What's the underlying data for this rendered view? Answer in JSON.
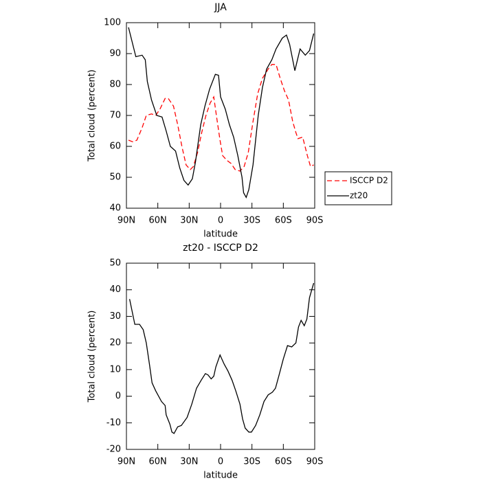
{
  "chart_data": [
    {
      "type": "line",
      "title": "JJA",
      "x_label": "latitude",
      "y_label": "Total cloud (percent)",
      "xlim": [
        90,
        -90
      ],
      "xticks": [
        {
          "value": 90,
          "label": "90N"
        },
        {
          "value": 60,
          "label": "60N"
        },
        {
          "value": 30,
          "label": "30N"
        },
        0,
        {
          "value": -30,
          "label": "30S"
        },
        {
          "value": -60,
          "label": "60S"
        },
        {
          "value": -90,
          "label": "90S"
        }
      ],
      "ylim": [
        40,
        100
      ],
      "yticks": [
        40,
        50,
        60,
        70,
        80,
        90,
        100
      ],
      "legend": "outside-right",
      "series": [
        {
          "name": "ISCCP D2",
          "color": "#ff0000",
          "dash": true,
          "x": [
            88,
            84,
            80,
            75,
            71,
            66,
            62,
            58,
            53,
            50,
            45,
            41,
            37,
            33,
            29,
            26,
            22,
            18,
            14,
            10,
            6.5,
            4,
            0.5,
            -2,
            -6,
            -10,
            -14,
            -18.5,
            -22.5,
            -26.5,
            -31,
            -35.5,
            -40,
            -45.5,
            -49,
            -53,
            -57,
            -61,
            -65,
            -69,
            -72,
            -74,
            -78.5,
            -83,
            -86,
            -89
          ],
          "values": [
            62,
            61.5,
            62,
            66,
            70,
            70.5,
            70,
            72,
            75.5,
            75.5,
            73,
            67,
            60,
            54,
            52.5,
            53.5,
            58,
            64.5,
            70,
            74,
            76,
            70,
            62,
            57,
            55.5,
            54.5,
            52.5,
            52,
            53.5,
            58,
            68,
            77,
            82,
            85,
            86.5,
            86.5,
            82,
            78,
            75,
            68,
            64.5,
            62.5,
            63,
            57,
            53.5,
            54
          ]
        },
        {
          "name": "zt20",
          "color": "#000000",
          "dash": false,
          "x": [
            88,
            81,
            75,
            72,
            70,
            66,
            61,
            56,
            52,
            48,
            43,
            39,
            35,
            31,
            27,
            24,
            19,
            15,
            10.5,
            5,
            2,
            0,
            -4.5,
            -8.5,
            -12.5,
            -16.5,
            -20.5,
            -22,
            -24.5,
            -27,
            -31,
            -36,
            -40,
            -44,
            -49,
            -53,
            -59,
            -63,
            -66,
            -71,
            -76,
            -81,
            -85,
            -89
          ],
          "values": [
            98.5,
            89,
            89.5,
            88,
            81,
            75,
            70,
            69.5,
            65,
            60,
            58.5,
            53,
            49,
            47.5,
            49.5,
            55,
            67,
            73,
            78.5,
            83.3,
            83,
            76,
            72,
            67,
            63,
            57,
            50,
            45,
            43.5,
            46,
            54,
            70,
            79,
            85,
            88,
            91.5,
            95,
            96,
            93,
            84.5,
            91.5,
            89.5,
            91,
            96.5
          ]
        }
      ]
    },
    {
      "type": "line",
      "title": "zt20 - ISCCP D2",
      "x_label": "latitude",
      "y_label": "Total cloud (percent)",
      "xlim": [
        90,
        -90
      ],
      "xticks": [
        {
          "value": 90,
          "label": "90N"
        },
        {
          "value": 60,
          "label": "60N"
        },
        {
          "value": 30,
          "label": "30N"
        },
        0,
        {
          "value": -30,
          "label": "30S"
        },
        {
          "value": -60,
          "label": "60S"
        },
        {
          "value": -90,
          "label": "90S"
        }
      ],
      "ylim": [
        -20,
        50
      ],
      "yticks": [
        -20,
        -10,
        0,
        10,
        20,
        30,
        40,
        50
      ],
      "series": [
        {
          "color": "#000000",
          "dash": false,
          "x": [
            87,
            82,
            77.5,
            74,
            71,
            68,
            65.5,
            62,
            56.5,
            53,
            52,
            48.5,
            46.5,
            44.5,
            41,
            37.5,
            32,
            27.5,
            23,
            18.5,
            14.5,
            12,
            9,
            6.5,
            4.5,
            0.5,
            -3.5,
            -7,
            -11,
            -14.5,
            -18.5,
            -21,
            -23.5,
            -27,
            -29.5,
            -33.5,
            -37.5,
            -41.5,
            -45.5,
            -49.5,
            -52.5,
            -56,
            -60,
            -64,
            -68,
            -72,
            -74.5,
            -77,
            -80,
            -82.5,
            -85,
            -89
          ],
          "values": [
            36.5,
            27,
            27,
            25,
            20,
            12,
            5,
            2,
            -2,
            -3.5,
            -7,
            -10.5,
            -13.5,
            -14,
            -11.5,
            -11,
            -8,
            -3,
            3,
            6,
            8.5,
            8,
            6.5,
            7.5,
            11,
            15.5,
            12,
            9.5,
            6,
            2,
            -3,
            -8.5,
            -12,
            -13.5,
            -13.5,
            -11,
            -7,
            -2,
            0.5,
            1.5,
            3,
            8,
            14,
            19,
            18.5,
            20,
            26,
            28.5,
            26.5,
            29,
            37,
            42.5
          ]
        }
      ]
    }
  ]
}
